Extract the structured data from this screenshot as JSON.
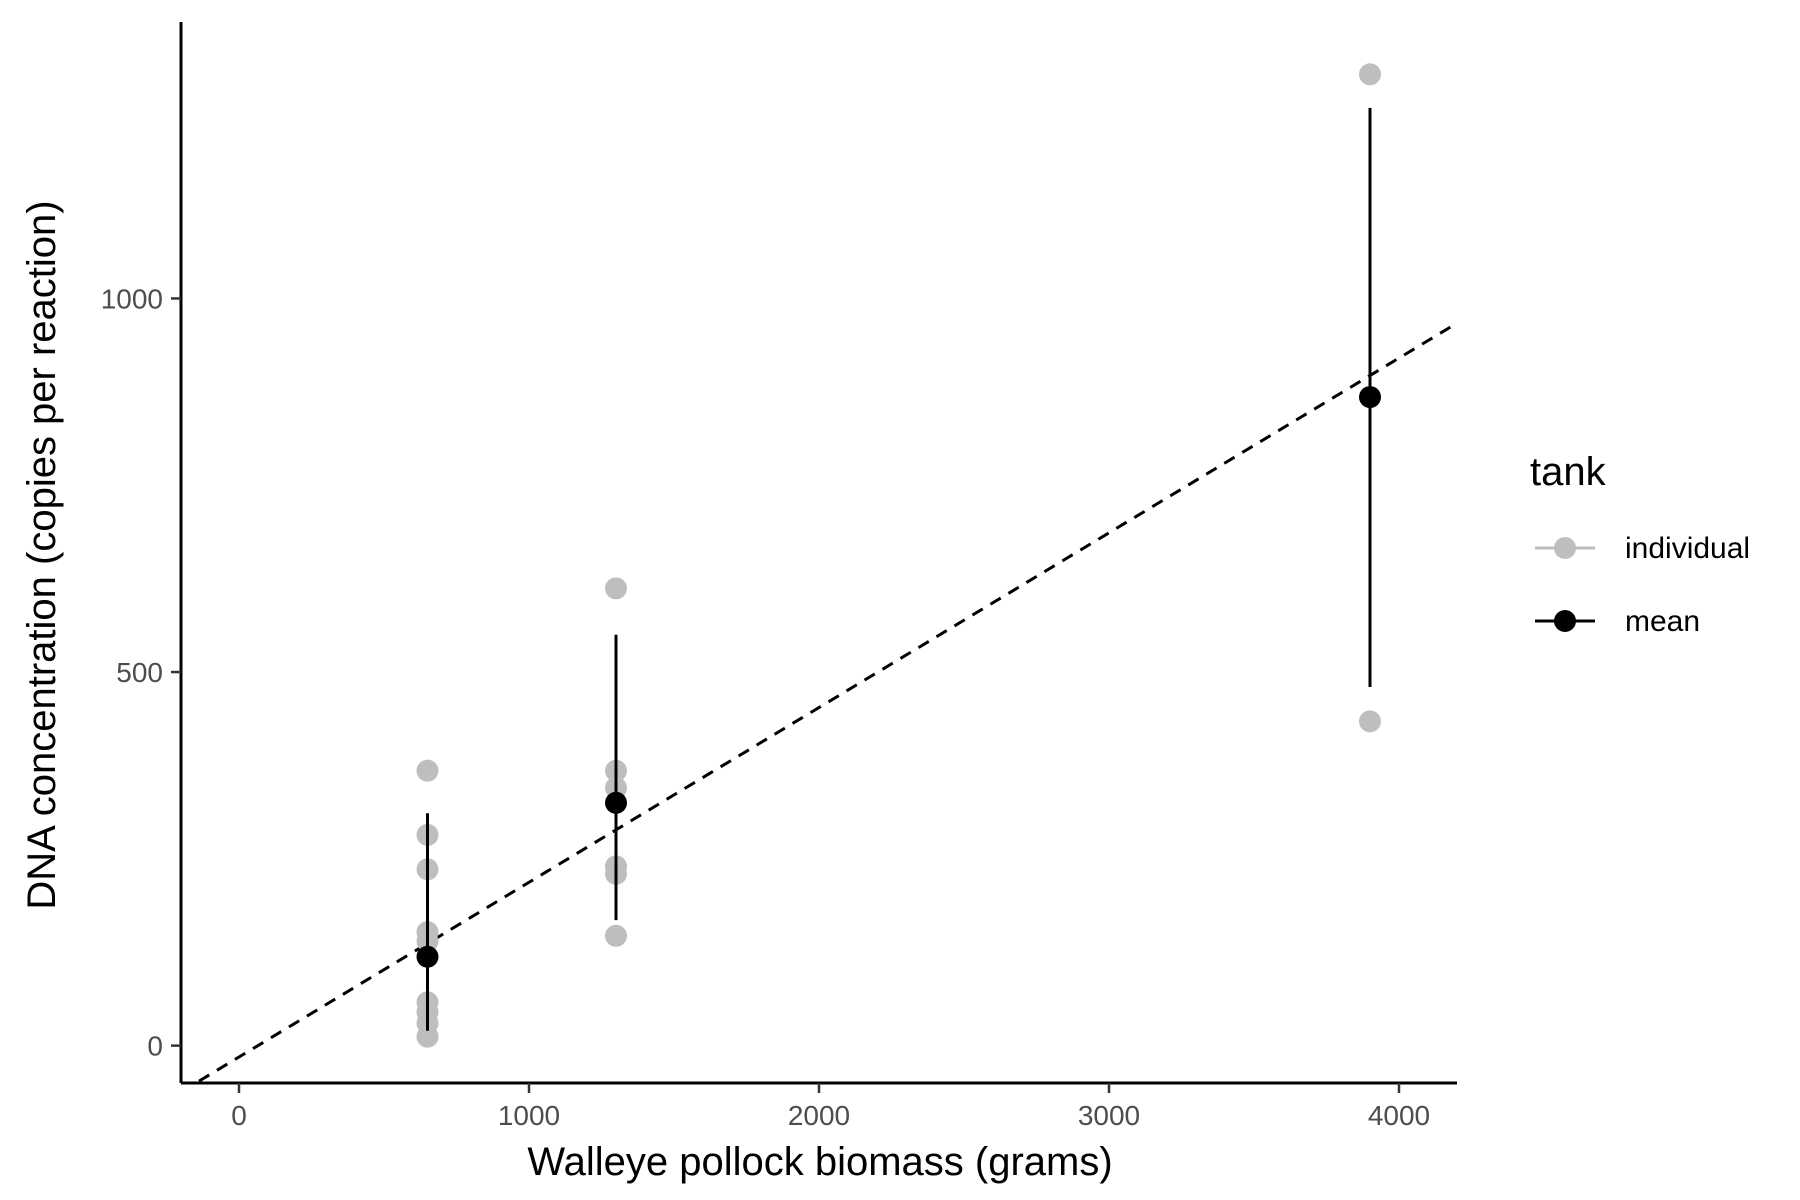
{
  "chart_data": {
    "type": "scatter",
    "xlabel": "Walleye pollock biomass (grams)",
    "ylabel": "DNA concentration (copies per reaction)",
    "xlim": [
      -200,
      4200
    ],
    "ylim": [
      -50,
      1370
    ],
    "x_ticks": [
      0,
      1000,
      2000,
      3000,
      4000
    ],
    "y_ticks": [
      0,
      500,
      1000
    ],
    "x_tick_labels": [
      "0",
      "1000",
      "2000",
      "3000",
      "4000"
    ],
    "y_tick_labels": [
      "0",
      "500",
      "1000"
    ],
    "grid": false,
    "legend": {
      "title": "tank",
      "placement": "right",
      "entries": [
        {
          "label": "individual",
          "color": "#bebebe"
        },
        {
          "label": "mean",
          "color": "#000000"
        }
      ]
    },
    "series": [
      {
        "name": "individual",
        "color": "#bebebe",
        "points": [
          {
            "x": 650,
            "y": 368
          },
          {
            "x": 650,
            "y": 282
          },
          {
            "x": 650,
            "y": 236
          },
          {
            "x": 650,
            "y": 152
          },
          {
            "x": 650,
            "y": 140
          },
          {
            "x": 650,
            "y": 58
          },
          {
            "x": 650,
            "y": 45
          },
          {
            "x": 650,
            "y": 30
          },
          {
            "x": 650,
            "y": 12
          },
          {
            "x": 1300,
            "y": 612
          },
          {
            "x": 1300,
            "y": 368
          },
          {
            "x": 1300,
            "y": 345
          },
          {
            "x": 1300,
            "y": 240
          },
          {
            "x": 1300,
            "y": 230
          },
          {
            "x": 1300,
            "y": 147
          },
          {
            "x": 3900,
            "y": 1300
          },
          {
            "x": 3900,
            "y": 434
          }
        ]
      },
      {
        "name": "mean",
        "color": "#000000",
        "points": [
          {
            "x": 650,
            "y": 119,
            "ymin": 20,
            "ymax": 311
          },
          {
            "x": 1300,
            "y": 325,
            "ymin": 168,
            "ymax": 550
          },
          {
            "x": 3900,
            "y": 868,
            "ymin": 480,
            "ymax": 1255
          }
        ]
      }
    ],
    "regression_line": {
      "style": "dashed",
      "color": "#000000",
      "x": [
        -200,
        4200
      ],
      "y": [
        -62,
        967
      ]
    }
  }
}
